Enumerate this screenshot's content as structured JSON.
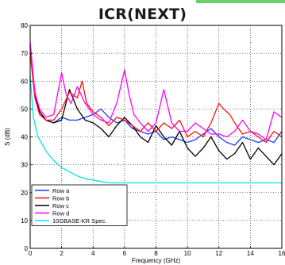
{
  "page_title": "ICR(NEXT)",
  "colors": {
    "accent": "#6ad06a"
  },
  "chart_data": {
    "type": "line",
    "xlabel": "Frequency (GHz)",
    "ylabel": "S (dB)",
    "xlim": [
      0,
      16
    ],
    "ylim": [
      0,
      80
    ],
    "xticks": [
      0,
      2,
      4,
      6,
      8,
      10,
      12,
      14,
      16
    ],
    "yticks": [
      0,
      10,
      20,
      30,
      40,
      50,
      60,
      70,
      80
    ],
    "xtick_labels": [
      "0",
      "2",
      "4",
      "6",
      "8",
      "10",
      "12",
      "14",
      "16"
    ],
    "ytick_labels": [
      "0",
      "10",
      "20",
      "30",
      "40",
      "50",
      "60",
      "70",
      "80"
    ],
    "grid": true,
    "legend": "bottom-left",
    "series": [
      {
        "name": "Row a",
        "color": "#1f3bff",
        "x": [
          0,
          0.3,
          0.6,
          1,
          1.5,
          2,
          2.5,
          3,
          3.5,
          4,
          4.5,
          5,
          5.5,
          6,
          6.5,
          7,
          7.5,
          8,
          8.5,
          9,
          9.5,
          10,
          10.5,
          11,
          11.5,
          12,
          12.5,
          13,
          13.5,
          14,
          14.5,
          15,
          15.5,
          16
        ],
        "y": [
          73,
          55,
          49,
          46,
          45,
          47,
          46,
          46,
          47,
          48,
          50,
          47,
          45,
          46,
          43,
          42,
          41,
          42,
          39,
          40,
          39,
          38,
          39,
          41,
          43,
          40,
          38,
          37,
          40,
          39,
          38,
          39,
          38,
          42
        ]
      },
      {
        "name": "Row b",
        "color": "#ff1010",
        "x": [
          0,
          0.3,
          0.6,
          1,
          1.5,
          2,
          2.5,
          3,
          3.3,
          3.6,
          4,
          4.5,
          5,
          5.5,
          6,
          6.5,
          7,
          7.5,
          8,
          8.5,
          9,
          9.5,
          10,
          10.5,
          11,
          11.5,
          12,
          12.3,
          12.7,
          13,
          13.5,
          14,
          14.5,
          15,
          15.5,
          16
        ],
        "y": [
          70,
          54,
          48,
          46,
          46,
          50,
          56,
          54,
          60,
          52,
          49,
          47,
          44,
          47,
          46,
          44,
          42,
          45,
          42,
          45,
          43,
          46,
          40,
          42,
          40,
          45,
          52,
          50,
          48,
          45,
          41,
          42,
          40,
          38,
          42,
          40
        ]
      },
      {
        "name": "Row c",
        "color": "#000000",
        "x": [
          0,
          0.3,
          0.6,
          1,
          1.5,
          2,
          2.5,
          3,
          3.5,
          4,
          4.5,
          5,
          5.5,
          6,
          6.5,
          7,
          7.5,
          8,
          8.5,
          9,
          9.5,
          10,
          10.5,
          11,
          11.5,
          12,
          12.5,
          13,
          13.5,
          14,
          14.5,
          15,
          15.5,
          16
        ],
        "y": [
          72,
          56,
          49,
          46,
          45,
          46,
          57,
          50,
          46,
          45,
          43,
          40,
          44,
          47,
          44,
          40,
          38,
          44,
          40,
          37,
          42,
          36,
          33,
          36,
          40,
          35,
          32,
          34,
          38,
          32,
          36,
          33,
          30,
          34
        ]
      },
      {
        "name": "Row d",
        "color": "#ff00ff",
        "x": [
          0,
          0.3,
          0.6,
          1,
          1.5,
          2,
          2.3,
          2.6,
          3,
          3.5,
          4,
          4.5,
          5,
          5.5,
          6,
          6.3,
          6.6,
          7,
          7.5,
          8,
          8.5,
          9,
          9.5,
          10,
          10.5,
          11,
          11.5,
          12,
          12.5,
          13,
          13.5,
          14,
          14.5,
          15,
          15.5,
          16
        ],
        "y": [
          74,
          56,
          50,
          47,
          48,
          63,
          55,
          52,
          58,
          52,
          48,
          46,
          45,
          52,
          64,
          55,
          48,
          45,
          42,
          45,
          57,
          45,
          42,
          42,
          45,
          43,
          41,
          41,
          40,
          42,
          46,
          42,
          41,
          39,
          49,
          47
        ]
      },
      {
        "name": "10GBASE-KR Spec.",
        "color": "#00e5e5",
        "x": [
          0,
          0.2,
          0.5,
          1,
          1.5,
          2,
          2.5,
          3,
          3.5,
          4,
          4.5,
          5,
          5.5,
          6,
          8,
          10,
          12,
          14,
          16
        ],
        "y": [
          62,
          47,
          40,
          35,
          31.5,
          29,
          27.5,
          26,
          25,
          24.5,
          24,
          23.5,
          23.5,
          23.5,
          23.5,
          23.5,
          23.5,
          23.5,
          23.5
        ]
      }
    ]
  }
}
